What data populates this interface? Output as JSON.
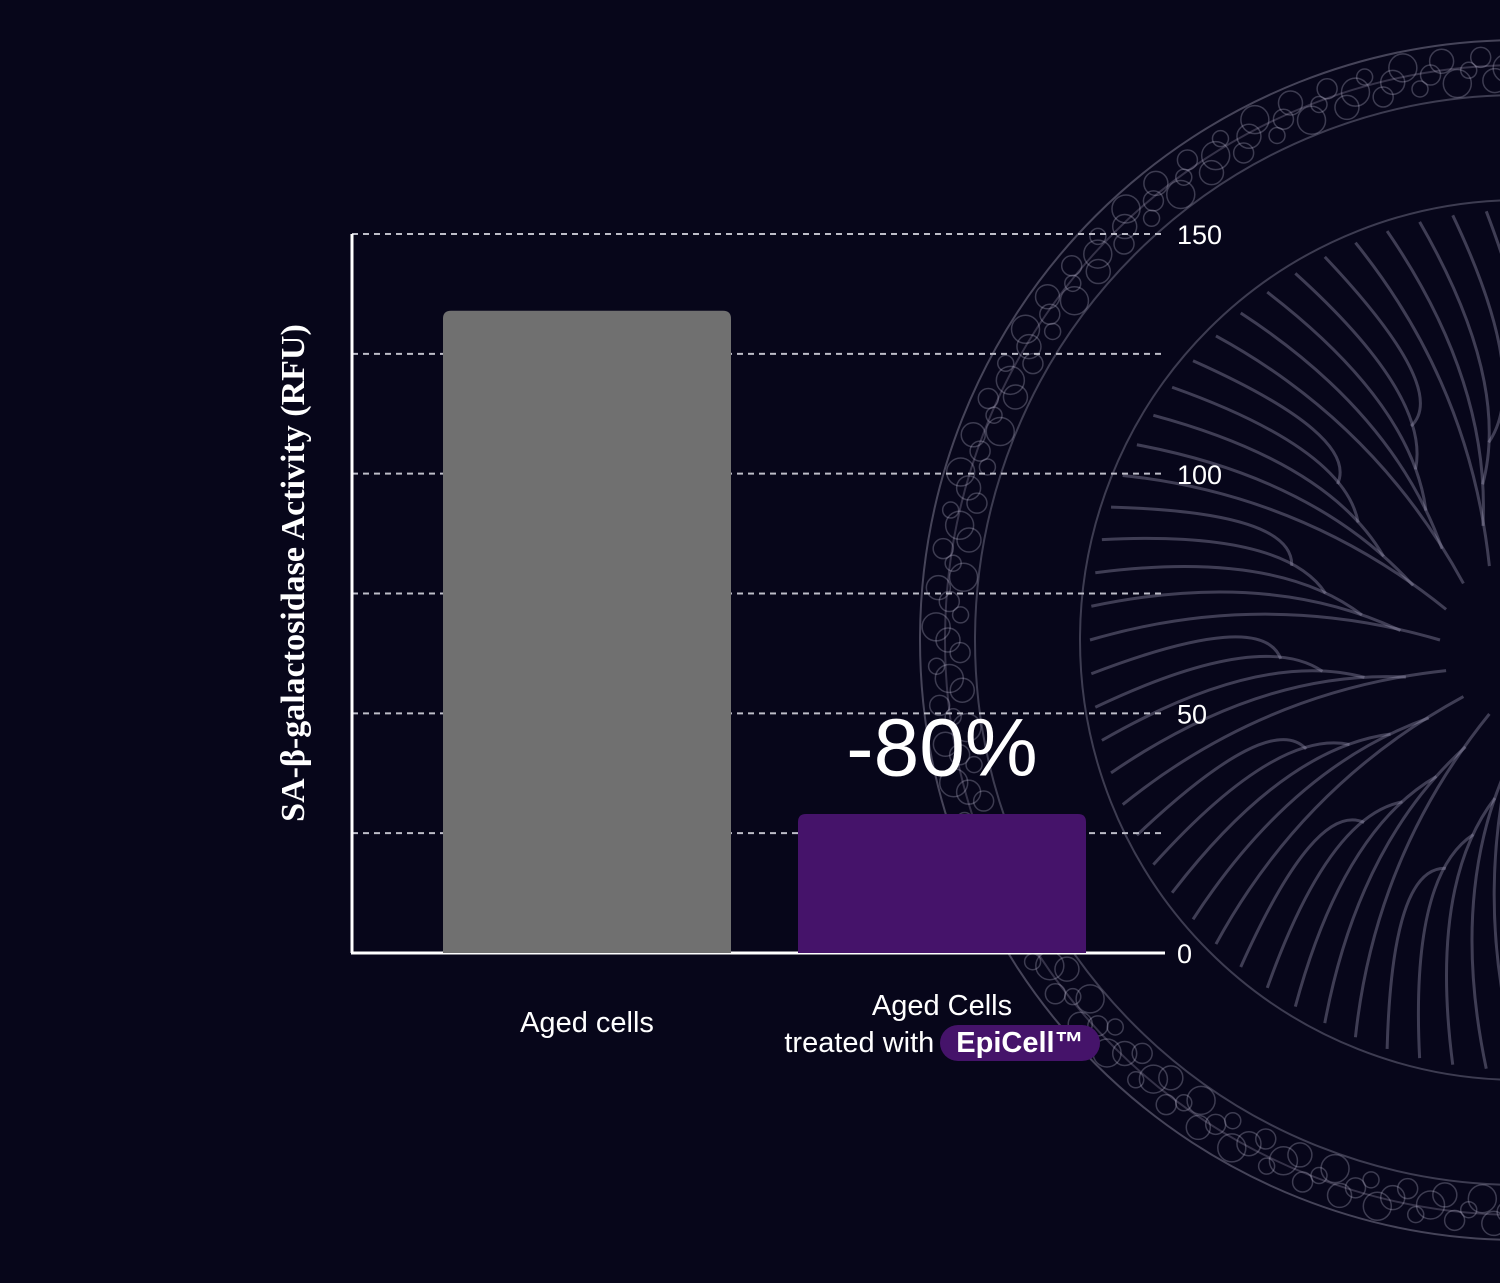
{
  "chart_data": {
    "type": "bar",
    "y_label": "SA-β-galactosidase Activity (RFU)",
    "categories": [
      "Aged cells",
      "Aged Cells\ntreated with"
    ],
    "badge": "EpiCell™",
    "values": [
      134,
      29
    ],
    "colors": [
      "#707070",
      "#45136a"
    ],
    "annotation": "-80%",
    "ylim": [
      0,
      150
    ],
    "yticks": [
      0,
      {
        "value": 25,
        "label": null
      },
      50,
      {
        "value": 75,
        "label": null
      },
      100,
      {
        "value": 125,
        "label": null
      },
      150
    ],
    "grid": true
  }
}
